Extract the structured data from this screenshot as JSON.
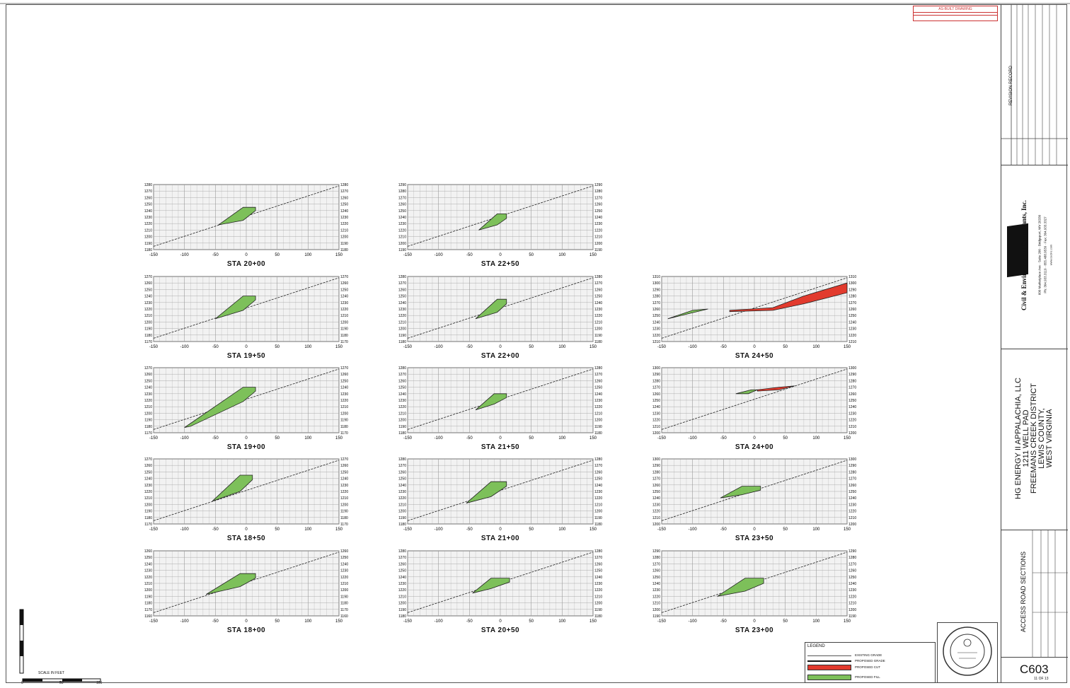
{
  "sheet": {
    "number": "C603",
    "title": "ACCESS ROAD SECTIONS",
    "sheet_of": "11 OF 13"
  },
  "company": {
    "name": "Civil & Environmental Consultants, Inc.",
    "address": "600 Marketplace Ave · Suite 200 · Bridgeport, WV 26330",
    "phone": "Ph: 304.933.3119 · 855.488.9539 · Fax: 304.933.3327",
    "web": "www.cecinc.com",
    "logo": "CEC"
  },
  "project": {
    "client": "HG ENERGY II APPALACHIA, LLC",
    "pad": "1211 WELL PAD",
    "district": "FREEMANS CREEK DISTRICT",
    "county": "LEWIS COUNTY,",
    "state": "WEST VIRGINIA"
  },
  "revision_record": "REVISION RECORD",
  "stamp_text": "AS-BUILT DRAWING",
  "legend": {
    "title": "LEGEND",
    "items": [
      {
        "label": "EXISTING GRADE",
        "color": "#555555",
        "kind": "line-thin"
      },
      {
        "label": "PROPOSED GRADE",
        "color": "#111111",
        "kind": "line-thick"
      },
      {
        "label": "PROPOSED CUT",
        "color": "#e23b2e",
        "kind": "fill"
      },
      {
        "label": "PROPOSED FILL",
        "color": "#7dc05a",
        "kind": "fill"
      }
    ]
  },
  "scale": {
    "label": "SCALE IN FEET",
    "ticks": [
      "0",
      "50",
      "100"
    ]
  },
  "colors": {
    "fill": "#7dc05a",
    "cut": "#e23b2e",
    "grid": "#9a9a9a",
    "line": "#222222"
  },
  "x_ticks": [
    "-150",
    "-100",
    "-50",
    "0",
    "50",
    "100",
    "150"
  ],
  "sections": [
    {
      "station": "STA 20+00",
      "elev": [
        "1280",
        "1270",
        "1260",
        "1250",
        "1240",
        "1230",
        "1220",
        "1210",
        "1200",
        "1190",
        "1180"
      ],
      "fill": [
        [
          -45,
          1218
        ],
        [
          -5,
          1245
        ],
        [
          15,
          1245
        ],
        [
          15,
          1240
        ],
        [
          -5,
          1225
        ]
      ],
      "cut": null
    },
    {
      "station": "STA 22+50",
      "elev": [
        "1290",
        "1280",
        "1270",
        "1260",
        "1250",
        "1240",
        "1230",
        "1220",
        "1210",
        "1200",
        "1190"
      ],
      "fill": [
        [
          -35,
          1220
        ],
        [
          -5,
          1245
        ],
        [
          10,
          1245
        ],
        [
          10,
          1238
        ],
        [
          -5,
          1228
        ]
      ],
      "cut": null
    },
    {
      "station": "STA 19+50",
      "elev": [
        "1270",
        "1260",
        "1250",
        "1240",
        "1230",
        "1220",
        "1210",
        "1200",
        "1190",
        "1180",
        "1170"
      ],
      "fill": [
        [
          -50,
          1205
        ],
        [
          -5,
          1240
        ],
        [
          15,
          1240
        ],
        [
          15,
          1234
        ],
        [
          -5,
          1218
        ]
      ],
      "cut": null
    },
    {
      "station": "STA 22+00",
      "elev": [
        "1280",
        "1270",
        "1260",
        "1250",
        "1240",
        "1230",
        "1220",
        "1210",
        "1200",
        "1190",
        "1180"
      ],
      "fill": [
        [
          -40,
          1215
        ],
        [
          -5,
          1245
        ],
        [
          10,
          1245
        ],
        [
          10,
          1238
        ],
        [
          -5,
          1225
        ]
      ],
      "cut": null
    },
    {
      "station": "STA 24+50",
      "elev": [
        "1310",
        "1300",
        "1290",
        "1280",
        "1270",
        "1260",
        "1250",
        "1240",
        "1230",
        "1220",
        "1210"
      ],
      "fill": [
        [
          -140,
          1245
        ],
        [
          -100,
          1258
        ],
        [
          -75,
          1260
        ],
        [
          -110,
          1252
        ]
      ],
      "cut": [
        [
          -40,
          1258
        ],
        [
          30,
          1262
        ],
        [
          80,
          1280
        ],
        [
          150,
          1300
        ],
        [
          150,
          1285
        ],
        [
          80,
          1268
        ],
        [
          30,
          1258
        ],
        [
          -40,
          1256
        ]
      ]
    },
    {
      "station": "STA 19+00",
      "elev": [
        "1270",
        "1260",
        "1250",
        "1240",
        "1230",
        "1220",
        "1210",
        "1200",
        "1190",
        "1180",
        "1170"
      ],
      "fill": [
        [
          -100,
          1178
        ],
        [
          -5,
          1240
        ],
        [
          15,
          1240
        ],
        [
          15,
          1234
        ],
        [
          -5,
          1218
        ],
        [
          -90,
          1180
        ]
      ],
      "cut": null
    },
    {
      "station": "STA 21+50",
      "elev": [
        "1280",
        "1270",
        "1260",
        "1250",
        "1240",
        "1230",
        "1220",
        "1210",
        "1200",
        "1190",
        "1180"
      ],
      "fill": [
        [
          -40,
          1215
        ],
        [
          -10,
          1240
        ],
        [
          10,
          1240
        ],
        [
          10,
          1234
        ],
        [
          -10,
          1224
        ]
      ],
      "cut": null
    },
    {
      "station": "STA 24+00",
      "elev": [
        "1300",
        "1290",
        "1280",
        "1270",
        "1260",
        "1250",
        "1240",
        "1230",
        "1220",
        "1210",
        "1200"
      ],
      "fill": [
        [
          -30,
          1260
        ],
        [
          -5,
          1266
        ],
        [
          5,
          1266
        ],
        [
          -10,
          1260
        ]
      ],
      "cut": [
        [
          5,
          1266
        ],
        [
          40,
          1270
        ],
        [
          65,
          1272
        ],
        [
          40,
          1266
        ],
        [
          5,
          1264
        ]
      ]
    },
    {
      "station": "STA 18+50",
      "elev": [
        "1270",
        "1260",
        "1250",
        "1240",
        "1230",
        "1220",
        "1210",
        "1200",
        "1190",
        "1180",
        "1170"
      ],
      "fill": [
        [
          -55,
          1205
        ],
        [
          -10,
          1245
        ],
        [
          10,
          1245
        ],
        [
          10,
          1238
        ],
        [
          -10,
          1220
        ]
      ],
      "cut": null
    },
    {
      "station": "STA 21+00",
      "elev": [
        "1280",
        "1270",
        "1260",
        "1250",
        "1240",
        "1230",
        "1220",
        "1210",
        "1200",
        "1190",
        "1180"
      ],
      "fill": [
        [
          -55,
          1212
        ],
        [
          -15,
          1245
        ],
        [
          10,
          1245
        ],
        [
          10,
          1238
        ],
        [
          -15,
          1222
        ]
      ],
      "cut": null
    },
    {
      "station": "STA 23+50",
      "elev": [
        "1300",
        "1290",
        "1280",
        "1270",
        "1260",
        "1250",
        "1240",
        "1230",
        "1220",
        "1210",
        "1200"
      ],
      "fill": [
        [
          -55,
          1240
        ],
        [
          -20,
          1258
        ],
        [
          10,
          1258
        ],
        [
          10,
          1252
        ],
        [
          -20,
          1245
        ]
      ],
      "cut": null
    },
    {
      "station": "STA 18+00",
      "elev": [
        "1260",
        "1250",
        "1240",
        "1230",
        "1220",
        "1210",
        "1200",
        "1190",
        "1180",
        "1170",
        "1160"
      ],
      "fill": [
        [
          -65,
          1193
        ],
        [
          -10,
          1225
        ],
        [
          15,
          1225
        ],
        [
          15,
          1218
        ],
        [
          -10,
          1205
        ]
      ],
      "cut": null
    },
    {
      "station": "STA 20+50",
      "elev": [
        "1280",
        "1270",
        "1260",
        "1250",
        "1240",
        "1230",
        "1220",
        "1210",
        "1200",
        "1190",
        "1180"
      ],
      "fill": [
        [
          -45,
          1215
        ],
        [
          -15,
          1238
        ],
        [
          15,
          1238
        ],
        [
          15,
          1232
        ],
        [
          -15,
          1222
        ]
      ],
      "cut": null
    },
    {
      "station": "STA 23+00",
      "elev": [
        "1290",
        "1280",
        "1270",
        "1260",
        "1250",
        "1240",
        "1230",
        "1220",
        "1210",
        "1200",
        "1190"
      ],
      "fill": [
        [
          -60,
          1220
        ],
        [
          -15,
          1248
        ],
        [
          15,
          1248
        ],
        [
          15,
          1240
        ],
        [
          -15,
          1228
        ]
      ],
      "cut": null
    }
  ]
}
